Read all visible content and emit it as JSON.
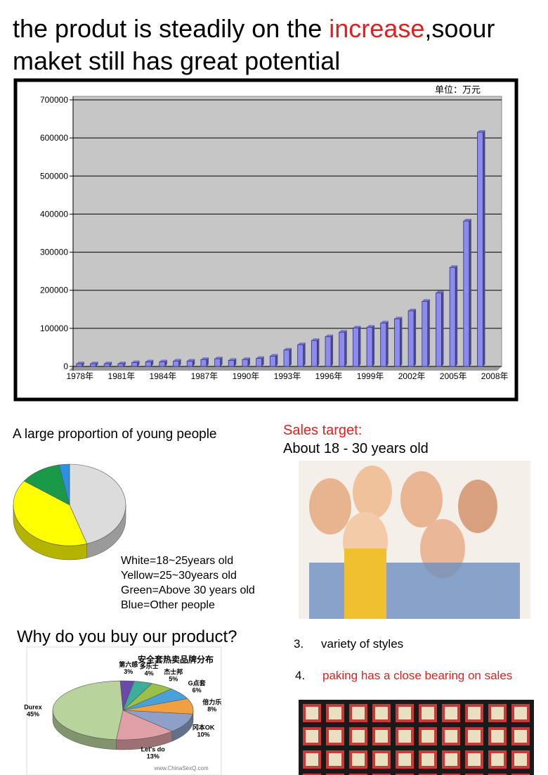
{
  "header": {
    "title_line1": [
      "the produt is steadily on the ",
      "increase",
      ",soour"
    ],
    "title_line2": "maket still has great potential"
  },
  "chart_data": [
    {
      "type": "bar",
      "annotation": "单位：万元",
      "categories": [
        "1978年",
        null,
        null,
        "1981年",
        null,
        null,
        "1984年",
        null,
        null,
        "1987年",
        null,
        null,
        "1990年",
        null,
        null,
        "1993年",
        null,
        null,
        "1996年",
        null,
        null,
        "1999年",
        null,
        null,
        "2002年",
        null,
        null,
        "2005年",
        null,
        null,
        "2008年"
      ],
      "values": [
        7000,
        7000,
        7000,
        7000,
        10000,
        12000,
        12000,
        14000,
        14000,
        18000,
        20000,
        16000,
        18000,
        21000,
        27000,
        43000,
        57000,
        68000,
        78000,
        90000,
        101000,
        103000,
        114000,
        125000,
        146000,
        171000,
        193000,
        260000,
        382000,
        615000,
        null
      ],
      "color": "#8c8cf0",
      "ylim": [
        0,
        700000
      ],
      "yticks": [
        0,
        100000,
        200000,
        300000,
        400000,
        500000,
        600000,
        700000
      ],
      "grid": true
    },
    {
      "type": "pie",
      "title": "A large proportion of young people",
      "categories": [
        "White=18~25years old",
        "Yellow=25~30years old",
        "Green=Above 30 years old",
        "Blue=Other people"
      ],
      "values": [
        45,
        40,
        12,
        3
      ],
      "colors": [
        "#dcdcdc",
        "#ffff00",
        "#1a9a48",
        "#2f8fe0"
      ]
    },
    {
      "type": "pie",
      "title": "安全套热卖品牌分布",
      "source": "www.ChinaSexQ.com",
      "categories": [
        "Durex",
        "第六感",
        "多乐士",
        "杰士邦",
        "G点套",
        "倍力乐",
        "冈本OK",
        "Let's do"
      ],
      "values": [
        45,
        3,
        4,
        5,
        6,
        8,
        10,
        13
      ],
      "value_labels": [
        "45%",
        "3%",
        "4%",
        "5%",
        "6%",
        "8%",
        "10%",
        "13%"
      ],
      "colors": [
        "#b8d49c",
        "#6a4aa8",
        "#3cae9a",
        "#9ac04a",
        "#4aa0d8",
        "#f0a040",
        "#8ea0c8",
        "#e0a0a8"
      ]
    }
  ],
  "sales_target": {
    "label": "Sales target:",
    "text": "About 18 - 30 years old"
  },
  "reasons": {
    "heading": "Why do you buy our product?",
    "items": [
      {
        "number": "3.",
        "text": "variety of styles"
      },
      {
        "number": "4.",
        "text": "paking has a close bearing on sales"
      }
    ]
  }
}
